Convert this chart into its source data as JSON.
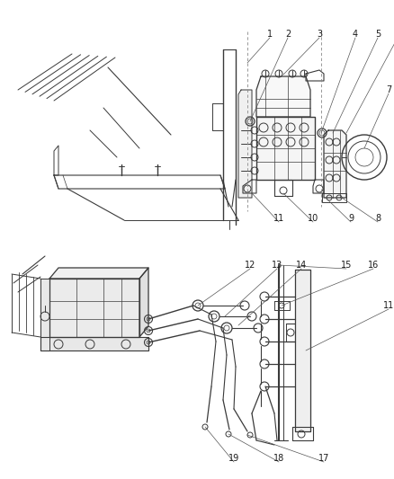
{
  "bg_color": "#ffffff",
  "line_color": "#3a3a3a",
  "label_color": "#1a1a1a",
  "label_fontsize": 7.0,
  "fig_width": 4.38,
  "fig_height": 5.33,
  "dpi": 100
}
